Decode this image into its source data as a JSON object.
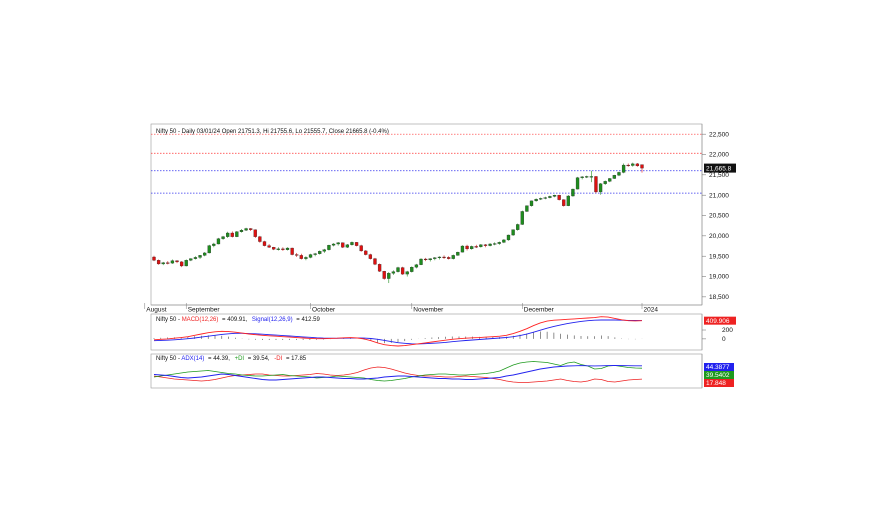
{
  "chart_data": [
    {
      "type": "candlestick",
      "title": "Nifty 50 - Daily 03/01/24 Open 21751.3, Hi 21755.6, Lo 21555.7, Close 21665.8 (-0.4%)",
      "ylim": [
        18300,
        22750
      ],
      "y_ticks": [
        "22,500",
        "22,000",
        "21,500",
        "21,000",
        "20,500",
        "20,000",
        "19,500",
        "19,000",
        "18,500"
      ],
      "y_tick_values": [
        22500,
        22000,
        21500,
        21000,
        20500,
        20000,
        19500,
        19000,
        18500
      ],
      "x_labels": [
        "August",
        "September",
        "October",
        "November",
        "December",
        "2024"
      ],
      "last_close_label": "21,665.8",
      "last_close": 21665.8,
      "colors": {
        "up": "#1e8c1e",
        "down": "#dd1111",
        "hline_red": "#ff3333",
        "hline_blue": "#3333ee",
        "badge": "#111111"
      },
      "hlines": [
        {
          "y": 22500,
          "color": "red"
        },
        {
          "y": 22030,
          "color": "red"
        },
        {
          "y": 21600,
          "color": "blue"
        },
        {
          "y": 21050,
          "color": "blue"
        }
      ],
      "candles": [
        [
          19480,
          19510,
          19380,
          19400
        ],
        [
          19400,
          19420,
          19290,
          19310
        ],
        [
          19310,
          19360,
          19280,
          19340
        ],
        [
          19340,
          19380,
          19300,
          19330
        ],
        [
          19330,
          19420,
          19310,
          19390
        ],
        [
          19390,
          19400,
          19330,
          19360
        ],
        [
          19360,
          19380,
          19230,
          19260
        ],
        [
          19260,
          19420,
          19250,
          19400
        ],
        [
          19400,
          19450,
          19380,
          19440
        ],
        [
          19440,
          19500,
          19420,
          19470
        ],
        [
          19470,
          19530,
          19430,
          19520
        ],
        [
          19520,
          19600,
          19500,
          19580
        ],
        [
          19580,
          19780,
          19570,
          19760
        ],
        [
          19760,
          19830,
          19720,
          19800
        ],
        [
          19800,
          19950,
          19790,
          19930
        ],
        [
          19930,
          20000,
          19900,
          19980
        ],
        [
          19980,
          20100,
          19950,
          20070
        ],
        [
          20070,
          20110,
          19960,
          19980
        ],
        [
          19980,
          20120,
          19970,
          20100
        ],
        [
          20100,
          20170,
          20080,
          20140
        ],
        [
          20140,
          20200,
          20120,
          20180
        ],
        [
          20180,
          20190,
          20120,
          20150
        ],
        [
          20150,
          20160,
          19950,
          19980
        ],
        [
          19980,
          20000,
          19830,
          19860
        ],
        [
          19860,
          19880,
          19740,
          19760
        ],
        [
          19760,
          19800,
          19700,
          19720
        ],
        [
          19720,
          19730,
          19650,
          19670
        ],
        [
          19670,
          19720,
          19640,
          19680
        ],
        [
          19680,
          19720,
          19630,
          19660
        ],
        [
          19660,
          19720,
          19640,
          19700
        ],
        [
          19700,
          19710,
          19520,
          19540
        ],
        [
          19540,
          19580,
          19480,
          19520
        ],
        [
          19520,
          19560,
          19420,
          19440
        ],
        [
          19440,
          19500,
          19400,
          19470
        ],
        [
          19470,
          19560,
          19450,
          19540
        ],
        [
          19540,
          19580,
          19500,
          19560
        ],
        [
          19560,
          19640,
          19540,
          19620
        ],
        [
          19620,
          19680,
          19580,
          19660
        ],
        [
          19660,
          19780,
          19640,
          19770
        ],
        [
          19770,
          19820,
          19740,
          19800
        ],
        [
          19800,
          19850,
          19760,
          19830
        ],
        [
          19830,
          19840,
          19700,
          19720
        ],
        [
          19720,
          19800,
          19700,
          19780
        ],
        [
          19780,
          19860,
          19760,
          19840
        ],
        [
          19840,
          19850,
          19740,
          19760
        ],
        [
          19760,
          19780,
          19610,
          19630
        ],
        [
          19630,
          19650,
          19520,
          19540
        ],
        [
          19540,
          19560,
          19420,
          19440
        ],
        [
          19440,
          19460,
          19280,
          19300
        ],
        [
          19300,
          19320,
          19110,
          19130
        ],
        [
          19130,
          19140,
          18920,
          18950
        ],
        [
          18950,
          19110,
          18840,
          19080
        ],
        [
          19080,
          19150,
          19040,
          19120
        ],
        [
          19120,
          19240,
          19100,
          19220
        ],
        [
          19220,
          19240,
          19040,
          19060
        ],
        [
          19060,
          19140,
          19000,
          19120
        ],
        [
          19120,
          19250,
          19100,
          19230
        ],
        [
          19230,
          19310,
          19200,
          19290
        ],
        [
          19290,
          19450,
          19280,
          19430
        ],
        [
          19430,
          19460,
          19380,
          19410
        ],
        [
          19410,
          19450,
          19370,
          19440
        ],
        [
          19440,
          19480,
          19400,
          19460
        ],
        [
          19460,
          19500,
          19420,
          19480
        ],
        [
          19480,
          19520,
          19430,
          19470
        ],
        [
          19470,
          19500,
          19420,
          19440
        ],
        [
          19440,
          19540,
          19420,
          19520
        ],
        [
          19520,
          19610,
          19510,
          19600
        ],
        [
          19600,
          19770,
          19590,
          19750
        ],
        [
          19750,
          19780,
          19640,
          19680
        ],
        [
          19680,
          19760,
          19660,
          19740
        ],
        [
          19740,
          19780,
          19700,
          19730
        ],
        [
          19730,
          19800,
          19710,
          19780
        ],
        [
          19780,
          19800,
          19720,
          19760
        ],
        [
          19760,
          19820,
          19740,
          19800
        ],
        [
          19800,
          19840,
          19770,
          19810
        ],
        [
          19810,
          19860,
          19780,
          19840
        ],
        [
          19840,
          19920,
          19820,
          19900
        ],
        [
          19900,
          20030,
          19880,
          20020
        ],
        [
          20020,
          20160,
          20000,
          20150
        ],
        [
          20150,
          20300,
          20130,
          20280
        ],
        [
          20280,
          20620,
          20270,
          20600
        ],
        [
          20600,
          20750,
          20590,
          20740
        ],
        [
          20740,
          20870,
          20720,
          20860
        ],
        [
          20860,
          20920,
          20840,
          20900
        ],
        [
          20900,
          20940,
          20880,
          20920
        ],
        [
          20920,
          20960,
          20900,
          20940
        ],
        [
          20940,
          20990,
          20920,
          20970
        ],
        [
          20970,
          21010,
          20950,
          21000
        ],
        [
          21000,
          21010,
          20870,
          20890
        ],
        [
          20890,
          20900,
          20720,
          20740
        ],
        [
          20740,
          21000,
          20730,
          20980
        ],
        [
          20980,
          21160,
          20960,
          21150
        ],
        [
          21150,
          21450,
          21140,
          21430
        ],
        [
          21430,
          21470,
          21390,
          21450
        ],
        [
          21450,
          21480,
          21420,
          21460
        ],
        [
          21460,
          21600,
          21320,
          21460
        ],
        [
          21460,
          21470,
          21050,
          21080
        ],
        [
          21080,
          21300,
          21010,
          21280
        ],
        [
          21280,
          21360,
          21250,
          21340
        ],
        [
          21340,
          21420,
          21320,
          21410
        ],
        [
          21410,
          21500,
          21400,
          21490
        ],
        [
          21490,
          21580,
          21470,
          21560
        ],
        [
          21560,
          21780,
          21540,
          21740
        ],
        [
          21740,
          21780,
          21700,
          21730
        ],
        [
          21730,
          21800,
          21700,
          21770
        ],
        [
          21770,
          21790,
          21700,
          21720
        ],
        [
          21751.3,
          21755.6,
          21555.7,
          21665.8
        ]
      ]
    },
    {
      "type": "line",
      "title_prefix": "Nifty 50 - ",
      "label_macd": "MACD(12,26)",
      "macd_value": "= 409.91,",
      "label_signal": "Signal(12,26,9)",
      "signal_value": "= 412.59",
      "y_ticks": [
        "200",
        "0"
      ],
      "y_tick_values": [
        200,
        0
      ],
      "ylim": [
        -250,
        560
      ],
      "badge_value": "409.906",
      "colors": {
        "macd": "#ff2222",
        "signal": "#2222ee",
        "hist": "#444444"
      },
      "series": [
        {
          "name": "MACD(12,26)",
          "values": [
            -20,
            -10,
            0,
            15,
            30,
            50,
            80,
            110,
            140,
            160,
            170,
            165,
            150,
            130,
            110,
            95,
            80,
            70,
            60,
            50,
            40,
            30,
            20,
            10,
            5,
            5,
            10,
            15,
            25,
            30,
            20,
            0,
            -40,
            -90,
            -130,
            -150,
            -160,
            -150,
            -130,
            -110,
            -90,
            -70,
            -50,
            -30,
            -10,
            5,
            15,
            25,
            30,
            40,
            50,
            60,
            80,
            120,
            170,
            230,
            300,
            360,
            400,
            420,
            430,
            440,
            450,
            460,
            470,
            480,
            500,
            490,
            460,
            430,
            410,
            405,
            409.91
          ]
        },
        {
          "name": "Signal(12,26,9)",
          "values": [
            -40,
            -35,
            -30,
            -20,
            -10,
            5,
            20,
            40,
            60,
            80,
            100,
            115,
            125,
            125,
            120,
            115,
            105,
            95,
            85,
            75,
            65,
            55,
            45,
            35,
            25,
            18,
            15,
            14,
            16,
            20,
            21,
            17,
            8,
            -10,
            -35,
            -60,
            -85,
            -100,
            -110,
            -112,
            -108,
            -100,
            -90,
            -78,
            -64,
            -50,
            -37,
            -25,
            -14,
            -3,
            8,
            20,
            32,
            50,
            75,
            108,
            150,
            195,
            240,
            280,
            315,
            345,
            372,
            394,
            410,
            420,
            425,
            428,
            425,
            420,
            416,
            413,
            412.59
          ]
        },
        {
          "name": "Histogram",
          "values": [
            20,
            25,
            30,
            35,
            40,
            45,
            60,
            70,
            80,
            80,
            70,
            50,
            25,
            5,
            -10,
            -20,
            -25,
            -25,
            -25,
            -25,
            -25,
            -25,
            -25,
            -25,
            -20,
            -13,
            -5,
            1,
            9,
            10,
            -1,
            -17,
            -48,
            -80,
            -95,
            -90,
            -75,
            -50,
            -20,
            2,
            18,
            30,
            40,
            48,
            54,
            55,
            52,
            50,
            44,
            43,
            42,
            40,
            48,
            70,
            95,
            122,
            150,
            165,
            160,
            140,
            115,
            95,
            78,
            66,
            60,
            60,
            75,
            62,
            35,
            10,
            -6,
            -8,
            -3
          ]
        }
      ]
    },
    {
      "type": "line",
      "title_prefix": "Nifty 50 - ",
      "label_adx": "ADX(14)",
      "adx_value": "= 44.39,",
      "label_pdi": "+DI",
      "pdi_value": "= 39.54,",
      "label_mdi": "-DI",
      "mdi_value": "= 17.85",
      "ylim": [
        0,
        68
      ],
      "badges": [
        {
          "value": "44.3877",
          "color": "#2222ee"
        },
        {
          "value": "39.5402",
          "color": "#1e9a1e"
        },
        {
          "value": "17.848",
          "color": "#ee2222"
        }
      ],
      "series": [
        {
          "name": "ADX(14)",
          "values": [
            27,
            26,
            25,
            23,
            21,
            20,
            21,
            22,
            24,
            26,
            28,
            27,
            25,
            23,
            21,
            19,
            17,
            16,
            16,
            17,
            18,
            19,
            20,
            21,
            22,
            22,
            21,
            20,
            19,
            19,
            18,
            18,
            19,
            20,
            22,
            23,
            24,
            24,
            23,
            22,
            21,
            20,
            19,
            19,
            18,
            18,
            17,
            17,
            18,
            19,
            20,
            21,
            24,
            26,
            29,
            32,
            35,
            38,
            40,
            42,
            43,
            44,
            44.5,
            44.8,
            44.5,
            44.2,
            44.5,
            44.8,
            45,
            44.8,
            44.6,
            44.5,
            44.39
          ]
        },
        {
          "name": "+DI",
          "values": [
            22,
            24,
            26,
            28,
            30,
            32,
            33,
            34,
            35,
            33,
            31,
            29,
            28,
            26,
            25,
            24,
            24,
            25,
            26,
            27,
            25,
            24,
            23,
            22,
            20,
            21,
            22,
            24,
            23,
            22,
            21,
            20,
            17,
            15,
            14,
            15,
            17,
            19,
            22,
            24,
            26,
            27,
            28,
            28,
            27,
            26,
            26,
            27,
            28,
            29,
            31,
            34,
            40,
            46,
            50,
            52,
            53,
            52,
            51,
            48,
            45,
            50,
            52,
            47,
            44,
            38,
            39,
            44,
            45,
            43,
            41,
            40,
            39.54
          ]
        },
        {
          "name": "-DI",
          "values": [
            24,
            22,
            20,
            18,
            17,
            16,
            15,
            14,
            15,
            17,
            20,
            23,
            25,
            26,
            27,
            28,
            28,
            26,
            25,
            24,
            24,
            25,
            26,
            27,
            29,
            28,
            26,
            25,
            26,
            28,
            31,
            36,
            40,
            42,
            41,
            38,
            34,
            30,
            27,
            25,
            24,
            24,
            23,
            22,
            22,
            23,
            24,
            23,
            22,
            21,
            19,
            17,
            14,
            12,
            11,
            11,
            12,
            13,
            14,
            16,
            18,
            15,
            13,
            12,
            14,
            18,
            17,
            13,
            12,
            14,
            16,
            17,
            17.85
          ]
        }
      ]
    }
  ]
}
